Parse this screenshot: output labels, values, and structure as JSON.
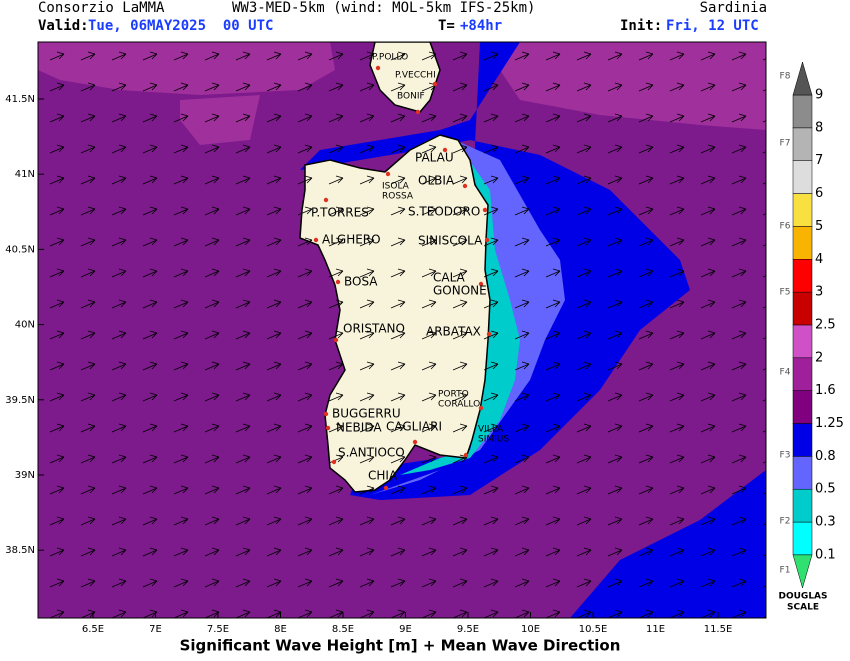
{
  "header": {
    "org": "Consorzio LaMMA",
    "model": "WW3-MED-5km (wind: MOL-5km IFS-25km)",
    "region": "Sardinia",
    "valid_label": "Valid:",
    "valid_value": "Tue, 06MAY2025  00 UTC",
    "lead_label": "T=",
    "lead_value": "+84hr",
    "init_label": "Init:",
    "init_value": "Fri, 12 UTC"
  },
  "map": {
    "lon_ticks": [
      "6.5E",
      "7E",
      "7.5E",
      "8E",
      "8.5E",
      "9E",
      "9.5E",
      "10E",
      "10.5E",
      "11E",
      "11.5E"
    ],
    "lat_ticks": [
      "41.5N",
      "41N",
      "40.5N",
      "40N",
      "39.5N",
      "39N",
      "38.5N"
    ],
    "places": [
      [
        "P.POLLO"
      ],
      [
        "P.VECCHI"
      ],
      [
        "BONIF"
      ],
      [
        "PALAU"
      ],
      [
        "ISOLA",
        "ROSSA"
      ],
      [
        "OLBIA"
      ],
      [
        "P.TORRES"
      ],
      [
        "S.TEODORO"
      ],
      [
        "ALGHERO"
      ],
      [
        "SINISCOLA"
      ],
      [
        "BOSA"
      ],
      [
        "CALA",
        "GONONE"
      ],
      [
        "ORISTANO"
      ],
      [
        "ARBATAX"
      ],
      [
        "PORTO",
        "CORALLO"
      ],
      [
        "BUGGERRU"
      ],
      [
        "NEBIDA"
      ],
      [
        "CAGLIARI"
      ],
      [
        "VILLA",
        "SIMIUS"
      ],
      [
        "S.ANTIOCO"
      ],
      [
        "CHIA"
      ]
    ]
  },
  "colorbar": {
    "levels": [
      0.1,
      0.3,
      0.5,
      0.8,
      1.25,
      1.6,
      2,
      2.5,
      3,
      4,
      5,
      6,
      7,
      8,
      9
    ],
    "colors": [
      "#00ffff",
      "#00cccc",
      "#6464ff",
      "#0000e6",
      "#800080",
      "#a0209c",
      "#d050c8",
      "#c80000",
      "#ff0000",
      "#f8b400",
      "#f8e040",
      "#dddddd",
      "#b4b4b4",
      "#8c8c8c"
    ],
    "under_color": "#30e070",
    "over_color": "#555555",
    "douglas": [
      "F1",
      "F2",
      "F3",
      "F4",
      "F5",
      "F6",
      "F7",
      "F8"
    ],
    "scale_label": [
      "DOUGLAS",
      "SCALE"
    ]
  },
  "footer": {
    "title": "Significant Wave Height [m] + Mean Wave Direction"
  }
}
